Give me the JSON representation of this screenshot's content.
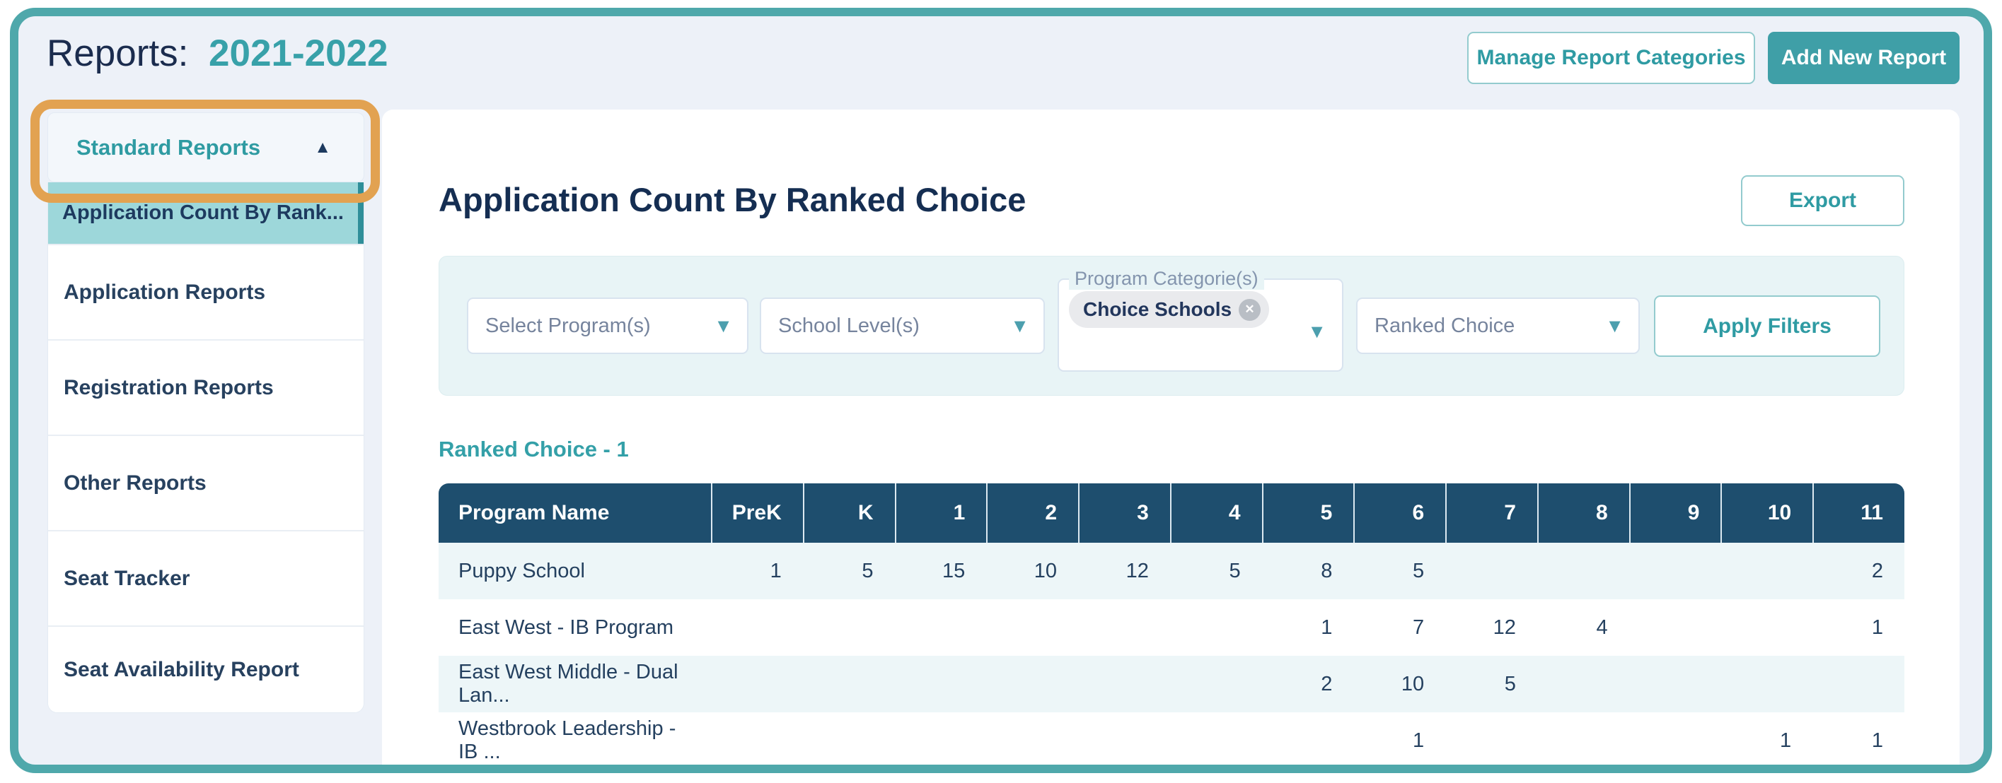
{
  "page": {
    "title_prefix": "Reports:",
    "title_year": "2021-2022"
  },
  "header_buttons": {
    "manage_label": "Manage Report Categories",
    "add_label": "Add New Report"
  },
  "icons": {
    "triangle_up": "▲",
    "caret_down": "▼",
    "close_x": "✕"
  },
  "sidebar": {
    "category_header_label": "Standard Reports",
    "selected_report": "Application Count By Rank...",
    "categories": [
      "Application Reports",
      "Registration Reports",
      "Other Reports",
      "Seat Tracker",
      "Seat Availability Report"
    ]
  },
  "annotation": {
    "highlighted_element": "Standard Reports header",
    "ring_color": "#E2A251"
  },
  "main": {
    "title": "Application Count By Ranked Choice",
    "export_label": "Export",
    "filters": {
      "program_placeholder": "Select Program(s)",
      "school_level_placeholder": "School Level(s)",
      "program_categories_label": "Program Categorie(s)",
      "program_categories_chip": "Choice Schools",
      "ranked_choice_placeholder": "Ranked Choice",
      "apply_label": "Apply Filters"
    },
    "section_label": "Ranked Choice - 1",
    "table": {
      "columns": [
        "Program Name",
        "PreK",
        "K",
        "1",
        "2",
        "3",
        "4",
        "5",
        "6",
        "7",
        "8",
        "9",
        "10",
        "11"
      ],
      "rows": [
        [
          "Puppy School",
          "1",
          "5",
          "15",
          "10",
          "12",
          "5",
          "8",
          "5",
          "",
          "",
          "",
          "",
          "2"
        ],
        [
          "East West - IB Program",
          "",
          "",
          "",
          "",
          "",
          "",
          "1",
          "7",
          "12",
          "4",
          "",
          "",
          "1"
        ],
        [
          "East West Middle - Dual Lan...",
          "",
          "",
          "",
          "",
          "",
          "",
          "2",
          "10",
          "5",
          "",
          "",
          "",
          ""
        ],
        [
          "Westbrook Leadership - IB ...",
          "",
          "",
          "",
          "",
          "",
          "",
          "",
          "1",
          "",
          "",
          "",
          "1",
          "1"
        ]
      ]
    }
  },
  "colors": {
    "frame_teal": "#4FA8AB",
    "accent_teal": "#2F9BA3",
    "solid_button_teal": "#3F9FA7",
    "selected_item_bg": "#9DD7DA",
    "selected_item_bar": "#2F8E99",
    "table_header_bg": "#1E4E6E",
    "row_tint": "#EDF6F8",
    "page_bg": "#EDF1F8",
    "filter_panel_bg": "#E8F4F6",
    "navy_text": "#152E52",
    "annotation_orange": "#E2A251"
  }
}
